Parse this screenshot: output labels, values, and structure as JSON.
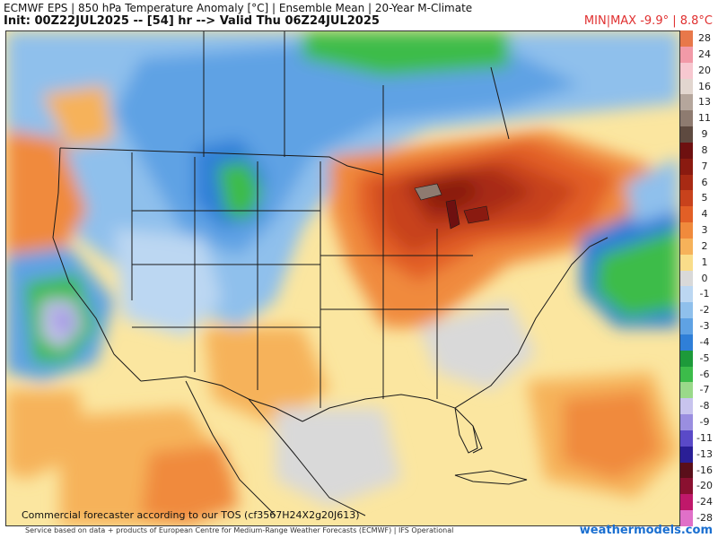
{
  "header": {
    "title_line1": "ECMWF EPS | 850 hPa Temperature Anomaly [°C] | Ensemble Mean | 20-Year M-Climate",
    "title_line2": "Init: 00Z22JUL2025 -- [54] hr --> Valid Thu 06Z24JUL2025",
    "minmax": "MIN|MAX -9.9° | 8.8°C"
  },
  "legend": {
    "items": [
      {
        "label": "28",
        "color": "#e8784a"
      },
      {
        "label": "24",
        "color": "#f29aa8"
      },
      {
        "label": "20",
        "color": "#f7c8d0"
      },
      {
        "label": "16",
        "color": "#e2d6cf"
      },
      {
        "label": "13",
        "color": "#b5a69c"
      },
      {
        "label": "11",
        "color": "#8e7b70"
      },
      {
        "label": "9",
        "color": "#5e4a40"
      },
      {
        "label": "8",
        "color": "#6e1010"
      },
      {
        "label": "7",
        "color": "#8a1a10"
      },
      {
        "label": "6",
        "color": "#a82a14"
      },
      {
        "label": "5",
        "color": "#c8421c"
      },
      {
        "label": "4",
        "color": "#e25f26"
      },
      {
        "label": "3",
        "color": "#f08a3c"
      },
      {
        "label": "2",
        "color": "#f6b25a"
      },
      {
        "label": "1",
        "color": "#f9dd8a"
      },
      {
        "label": "0",
        "color": "#d9d9d9"
      },
      {
        "label": "-1",
        "color": "#bcd7f2"
      },
      {
        "label": "-2",
        "color": "#8fc0ec"
      },
      {
        "label": "-3",
        "color": "#5fa2e4"
      },
      {
        "label": "-4",
        "color": "#2f7fd8"
      },
      {
        "label": "-5",
        "color": "#1d9a3a"
      },
      {
        "label": "-6",
        "color": "#3cbc4a"
      },
      {
        "label": "-7",
        "color": "#9ad98a"
      },
      {
        "label": "-8",
        "color": "#c8c4ee"
      },
      {
        "label": "-9",
        "color": "#9a8ee0"
      },
      {
        "label": "-11",
        "color": "#5a4ac8"
      },
      {
        "label": "-13",
        "color": "#2a1f96"
      },
      {
        "label": "-16",
        "color": "#5a0f1a"
      },
      {
        "label": "-20",
        "color": "#8a1030"
      },
      {
        "label": "-24",
        "color": "#c0186a"
      },
      {
        "label": "-28",
        "color": "#e070c8"
      }
    ]
  },
  "footer": {
    "note": "Commercial forecaster according to our TOS (cf3567H24X2g20J613)",
    "credit": "Service based on data + products of European Centre for Medium-Range Weather Forecasts (ECMWF) | IFS Operational",
    "site": "weathermodels.com"
  }
}
